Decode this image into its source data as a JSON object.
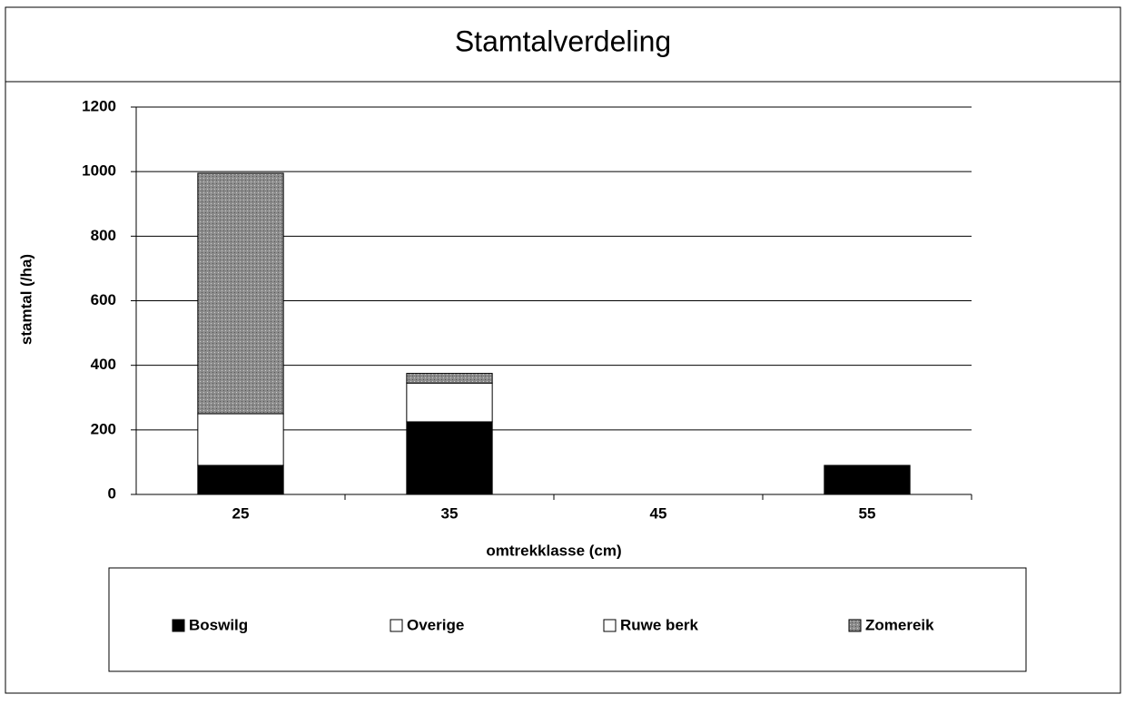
{
  "chart_data": {
    "type": "stacked_bar",
    "title": "Stamtalverdeling",
    "x_label": "omtrekklasse (cm)",
    "y_label": "stamtal (/ha)",
    "categories": [
      "25",
      "35",
      "45",
      "55"
    ],
    "series": [
      {
        "name": "Boswilg",
        "color": "#000000",
        "values": [
          90,
          225,
          0,
          90
        ]
      },
      {
        "name": "Overige",
        "color": "#ffffff",
        "values": [
          0,
          0,
          0,
          0
        ]
      },
      {
        "name": "Ruwe berk",
        "color": "#ffffff",
        "values": [
          160,
          120,
          0,
          0
        ]
      },
      {
        "name": "Zomereik",
        "color": "#8c8c8c",
        "values": [
          745,
          30,
          0,
          0
        ]
      }
    ],
    "ylim": [
      0,
      1200
    ],
    "yticks": [
      0,
      200,
      400,
      600,
      800,
      1000,
      1200
    ],
    "grid": true,
    "legend": "bottom"
  }
}
